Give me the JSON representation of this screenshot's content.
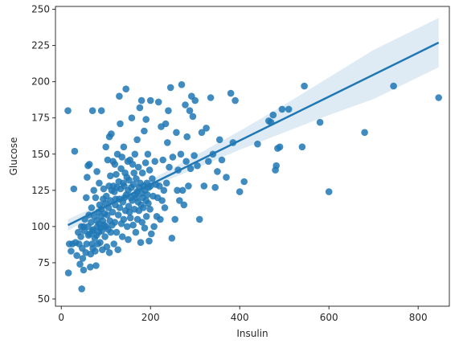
{
  "chart_data": {
    "type": "scatter",
    "title": "",
    "xlabel": "Insulin",
    "ylabel": "Glucose",
    "xlim": [
      -13,
      870
    ],
    "ylim": [
      45,
      252
    ],
    "xticks": [
      0,
      200,
      400,
      600,
      800
    ],
    "yticks": [
      50,
      75,
      100,
      125,
      150,
      175,
      200,
      225,
      250
    ],
    "grid": false,
    "legend": "none",
    "colors": {
      "points": "#1f77b4",
      "line": "#1f77b4",
      "band": "#1f77b4"
    },
    "regression": {
      "x": [
        15,
        846
      ],
      "y": [
        101,
        227
      ]
    },
    "confidence_band": [
      {
        "x": 15,
        "lo": 97,
        "hi": 105
      },
      {
        "x": 100,
        "lo": 112,
        "hi": 117
      },
      {
        "x": 200,
        "lo": 127,
        "hi": 132
      },
      {
        "x": 300,
        "lo": 140,
        "hi": 149
      },
      {
        "x": 400,
        "lo": 153,
        "hi": 166
      },
      {
        "x": 500,
        "lo": 165,
        "hi": 184
      },
      {
        "x": 600,
        "lo": 177,
        "hi": 203
      },
      {
        "x": 700,
        "lo": 188,
        "hi": 222
      },
      {
        "x": 846,
        "lo": 210,
        "hi": 244
      }
    ],
    "points": [
      [
        15,
        180
      ],
      [
        16,
        68
      ],
      [
        18,
        88
      ],
      [
        22,
        83
      ],
      [
        25,
        88
      ],
      [
        28,
        126
      ],
      [
        30,
        152
      ],
      [
        32,
        89
      ],
      [
        35,
        80
      ],
      [
        38,
        96
      ],
      [
        40,
        88
      ],
      [
        42,
        74
      ],
      [
        44,
        93
      ],
      [
        45,
        100
      ],
      [
        46,
        57
      ],
      [
        47,
        85
      ],
      [
        48,
        78
      ],
      [
        50,
        100
      ],
      [
        50,
        70
      ],
      [
        52,
        97
      ],
      [
        53,
        105
      ],
      [
        55,
        82
      ],
      [
        56,
        120
      ],
      [
        57,
        88
      ],
      [
        58,
        134
      ],
      [
        60,
        142
      ],
      [
        60,
        100
      ],
      [
        61,
        94
      ],
      [
        62,
        108
      ],
      [
        63,
        143
      ],
      [
        64,
        95
      ],
      [
        65,
        72
      ],
      [
        66,
        81
      ],
      [
        67,
        103
      ],
      [
        68,
        113
      ],
      [
        69,
        88
      ],
      [
        70,
        180
      ],
      [
        70,
        97
      ],
      [
        71,
        85
      ],
      [
        72,
        98
      ],
      [
        73,
        125
      ],
      [
        74,
        107
      ],
      [
        75,
        92
      ],
      [
        76,
        83
      ],
      [
        77,
        120
      ],
      [
        78,
        73
      ],
      [
        79,
        94
      ],
      [
        80,
        104
      ],
      [
        80,
        138
      ],
      [
        81,
        100
      ],
      [
        82,
        88
      ],
      [
        83,
        110
      ],
      [
        84,
        96
      ],
      [
        85,
        130
      ],
      [
        85,
        102
      ],
      [
        86,
        115
      ],
      [
        87,
        89
      ],
      [
        88,
        99
      ],
      [
        89,
        107
      ],
      [
        90,
        112
      ],
      [
        90,
        180
      ],
      [
        91,
        97
      ],
      [
        92,
        84
      ],
      [
        93,
        104
      ],
      [
        94,
        119
      ],
      [
        95,
        126
      ],
      [
        96,
        101
      ],
      [
        97,
        109
      ],
      [
        98,
        93
      ],
      [
        99,
        116
      ],
      [
        100,
        155
      ],
      [
        100,
        100
      ],
      [
        101,
        121
      ],
      [
        102,
        86
      ],
      [
        103,
        108
      ],
      [
        104,
        146
      ],
      [
        105,
        98
      ],
      [
        106,
        113
      ],
      [
        107,
        128
      ],
      [
        108,
        82
      ],
      [
        108,
        162
      ],
      [
        109,
        104
      ],
      [
        110,
        118
      ],
      [
        110,
        135
      ],
      [
        111,
        96
      ],
      [
        112,
        164
      ],
      [
        113,
        125
      ],
      [
        114,
        101
      ],
      [
        115,
        110
      ],
      [
        116,
        145
      ],
      [
        117,
        128
      ],
      [
        118,
        88
      ],
      [
        119,
        124
      ],
      [
        120,
        103
      ],
      [
        120,
        143
      ],
      [
        121,
        115
      ],
      [
        122,
        119
      ],
      [
        123,
        136
      ],
      [
        124,
        96
      ],
      [
        125,
        127
      ],
      [
        126,
        150
      ],
      [
        127,
        84
      ],
      [
        128,
        108
      ],
      [
        129,
        131
      ],
      [
        130,
        119
      ],
      [
        130,
        190
      ],
      [
        131,
        113
      ],
      [
        132,
        171
      ],
      [
        133,
        126
      ],
      [
        134,
        140
      ],
      [
        135,
        102
      ],
      [
        136,
        148
      ],
      [
        137,
        93
      ],
      [
        138,
        117
      ],
      [
        139,
        130
      ],
      [
        140,
        155
      ],
      [
        140,
        105
      ],
      [
        141,
        128
      ],
      [
        142,
        120
      ],
      [
        143,
        137
      ],
      [
        144,
        111
      ],
      [
        145,
        195
      ],
      [
        146,
        122
      ],
      [
        147,
        134
      ],
      [
        148,
        100
      ],
      [
        149,
        145
      ],
      [
        150,
        125
      ],
      [
        150,
        91
      ],
      [
        151,
        114
      ],
      [
        152,
        132
      ],
      [
        153,
        110
      ],
      [
        154,
        146
      ],
      [
        155,
        106
      ],
      [
        156,
        120
      ],
      [
        157,
        127
      ],
      [
        158,
        175
      ],
      [
        159,
        118
      ],
      [
        160,
        143
      ],
      [
        161,
        101
      ],
      [
        162,
        129
      ],
      [
        163,
        137
      ],
      [
        164,
        112
      ],
      [
        165,
        150
      ],
      [
        166,
        122
      ],
      [
        167,
        96
      ],
      [
        168,
        133
      ],
      [
        169,
        120
      ],
      [
        170,
        160
      ],
      [
        170,
        124
      ],
      [
        171,
        105
      ],
      [
        172,
        117
      ],
      [
        173,
        141
      ],
      [
        174,
        111
      ],
      [
        175,
        127
      ],
      [
        176,
        182
      ],
      [
        177,
        130
      ],
      [
        178,
        89
      ],
      [
        179,
        115
      ],
      [
        180,
        123
      ],
      [
        180,
        187
      ],
      [
        181,
        103
      ],
      [
        182,
        137
      ],
      [
        183,
        120
      ],
      [
        184,
        113
      ],
      [
        185,
        128
      ],
      [
        186,
        166
      ],
      [
        187,
        99
      ],
      [
        188,
        125
      ],
      [
        189,
        144
      ],
      [
        190,
        118
      ],
      [
        190,
        174
      ],
      [
        191,
        107
      ],
      [
        192,
        130
      ],
      [
        193,
        122
      ],
      [
        194,
        150
      ],
      [
        195,
        116
      ],
      [
        196,
        127
      ],
      [
        197,
        90
      ],
      [
        198,
        139
      ],
      [
        199,
        112
      ],
      [
        200,
        128
      ],
      [
        200,
        187
      ],
      [
        202,
        95
      ],
      [
        204,
        133
      ],
      [
        206,
        121
      ],
      [
        208,
        100
      ],
      [
        210,
        145
      ],
      [
        212,
        129
      ],
      [
        214,
        107
      ],
      [
        216,
        120
      ],
      [
        218,
        186
      ],
      [
        220,
        128
      ],
      [
        222,
        105
      ],
      [
        224,
        169
      ],
      [
        226,
        118
      ],
      [
        228,
        146
      ],
      [
        230,
        125
      ],
      [
        232,
        113
      ],
      [
        234,
        171
      ],
      [
        236,
        130
      ],
      [
        238,
        158
      ],
      [
        240,
        180
      ],
      [
        242,
        141
      ],
      [
        245,
        196
      ],
      [
        248,
        92
      ],
      [
        250,
        148
      ],
      [
        255,
        105
      ],
      [
        258,
        165
      ],
      [
        260,
        125
      ],
      [
        262,
        139
      ],
      [
        265,
        118
      ],
      [
        268,
        150
      ],
      [
        270,
        198
      ],
      [
        272,
        125
      ],
      [
        275,
        115
      ],
      [
        278,
        184
      ],
      [
        280,
        145
      ],
      [
        282,
        162
      ],
      [
        285,
        128
      ],
      [
        288,
        180
      ],
      [
        290,
        140
      ],
      [
        292,
        190
      ],
      [
        295,
        176
      ],
      [
        298,
        149
      ],
      [
        300,
        187
      ],
      [
        305,
        142
      ],
      [
        310,
        105
      ],
      [
        315,
        165
      ],
      [
        320,
        128
      ],
      [
        325,
        168
      ],
      [
        330,
        145
      ],
      [
        335,
        189
      ],
      [
        340,
        150
      ],
      [
        345,
        127
      ],
      [
        350,
        138
      ],
      [
        355,
        160
      ],
      [
        360,
        146
      ],
      [
        370,
        134
      ],
      [
        380,
        192
      ],
      [
        385,
        158
      ],
      [
        390,
        187
      ],
      [
        400,
        124
      ],
      [
        410,
        131
      ],
      [
        440,
        157
      ],
      [
        465,
        173
      ],
      [
        470,
        172
      ],
      [
        475,
        177
      ],
      [
        480,
        139
      ],
      [
        482,
        142
      ],
      [
        485,
        154
      ],
      [
        490,
        155
      ],
      [
        495,
        181
      ],
      [
        510,
        181
      ],
      [
        540,
        155
      ],
      [
        545,
        197
      ],
      [
        580,
        172
      ],
      [
        600,
        124
      ],
      [
        680,
        165
      ],
      [
        745,
        197
      ],
      [
        846,
        189
      ]
    ]
  }
}
